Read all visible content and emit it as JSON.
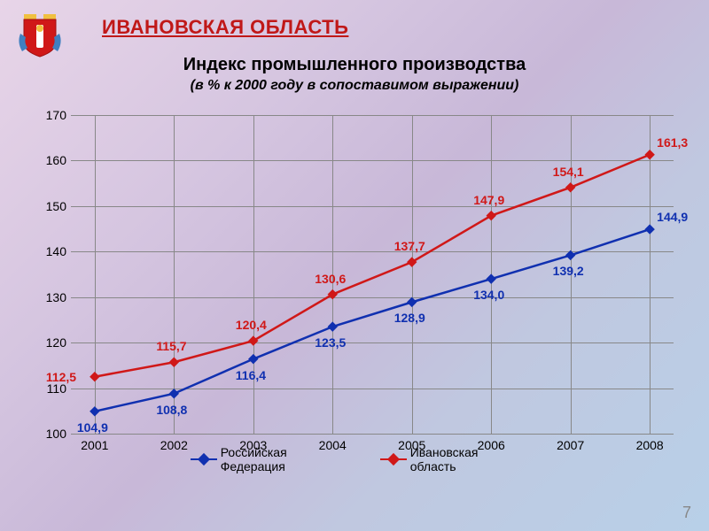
{
  "region_title": "ИВАНОВСКАЯ ОБЛАСТЬ",
  "chart": {
    "type": "line",
    "title": "Индекс промышленного производства",
    "subtitle": "(в % к 2000 году в сопоставимом выражении)",
    "page_number": "7",
    "ylim": [
      100,
      170
    ],
    "ytick_step": 10,
    "yticks": [
      100,
      110,
      120,
      130,
      140,
      150,
      160,
      170
    ],
    "categories": [
      "2001",
      "2002",
      "2003",
      "2004",
      "2005",
      "2006",
      "2007",
      "2008"
    ],
    "grid_color": "#888888",
    "background": "transparent",
    "label_fontsize": 14,
    "title_fontsize": 20,
    "subtitle_fontsize": 16,
    "line_width": 2.5,
    "marker_style": "diamond",
    "marker_size": 10,
    "series": [
      {
        "name": "Российская Федерация",
        "color": "#1030b0",
        "label_color": "#1030b0",
        "values": [
          104.9,
          108.8,
          116.4,
          123.5,
          128.9,
          134.0,
          139.2,
          144.9
        ],
        "labels": [
          "104,9",
          "108,8",
          "116,4",
          "123,5",
          "128,9",
          "134,0",
          "139,2",
          "144,9"
        ],
        "label_pos": [
          "below",
          "below",
          "below",
          "below",
          "below",
          "below",
          "below",
          "above-right"
        ]
      },
      {
        "name": "Ивановская область",
        "color": "#d01818",
        "label_color": "#d01818",
        "values": [
          112.5,
          115.7,
          120.4,
          130.6,
          137.7,
          147.9,
          154.1,
          161.3
        ],
        "labels": [
          "112,5",
          "115,7",
          "120,4",
          "130,6",
          "137,7",
          "147,9",
          "154,1",
          "161,3"
        ],
        "label_pos": [
          "left",
          "above",
          "above",
          "above",
          "above",
          "above",
          "above",
          "above-right"
        ]
      }
    ]
  },
  "emblem": {
    "shield_color": "#d01818",
    "accent_color": "#f0c040",
    "crown_color": "#f0c040",
    "banner_color": "#4080c0"
  }
}
